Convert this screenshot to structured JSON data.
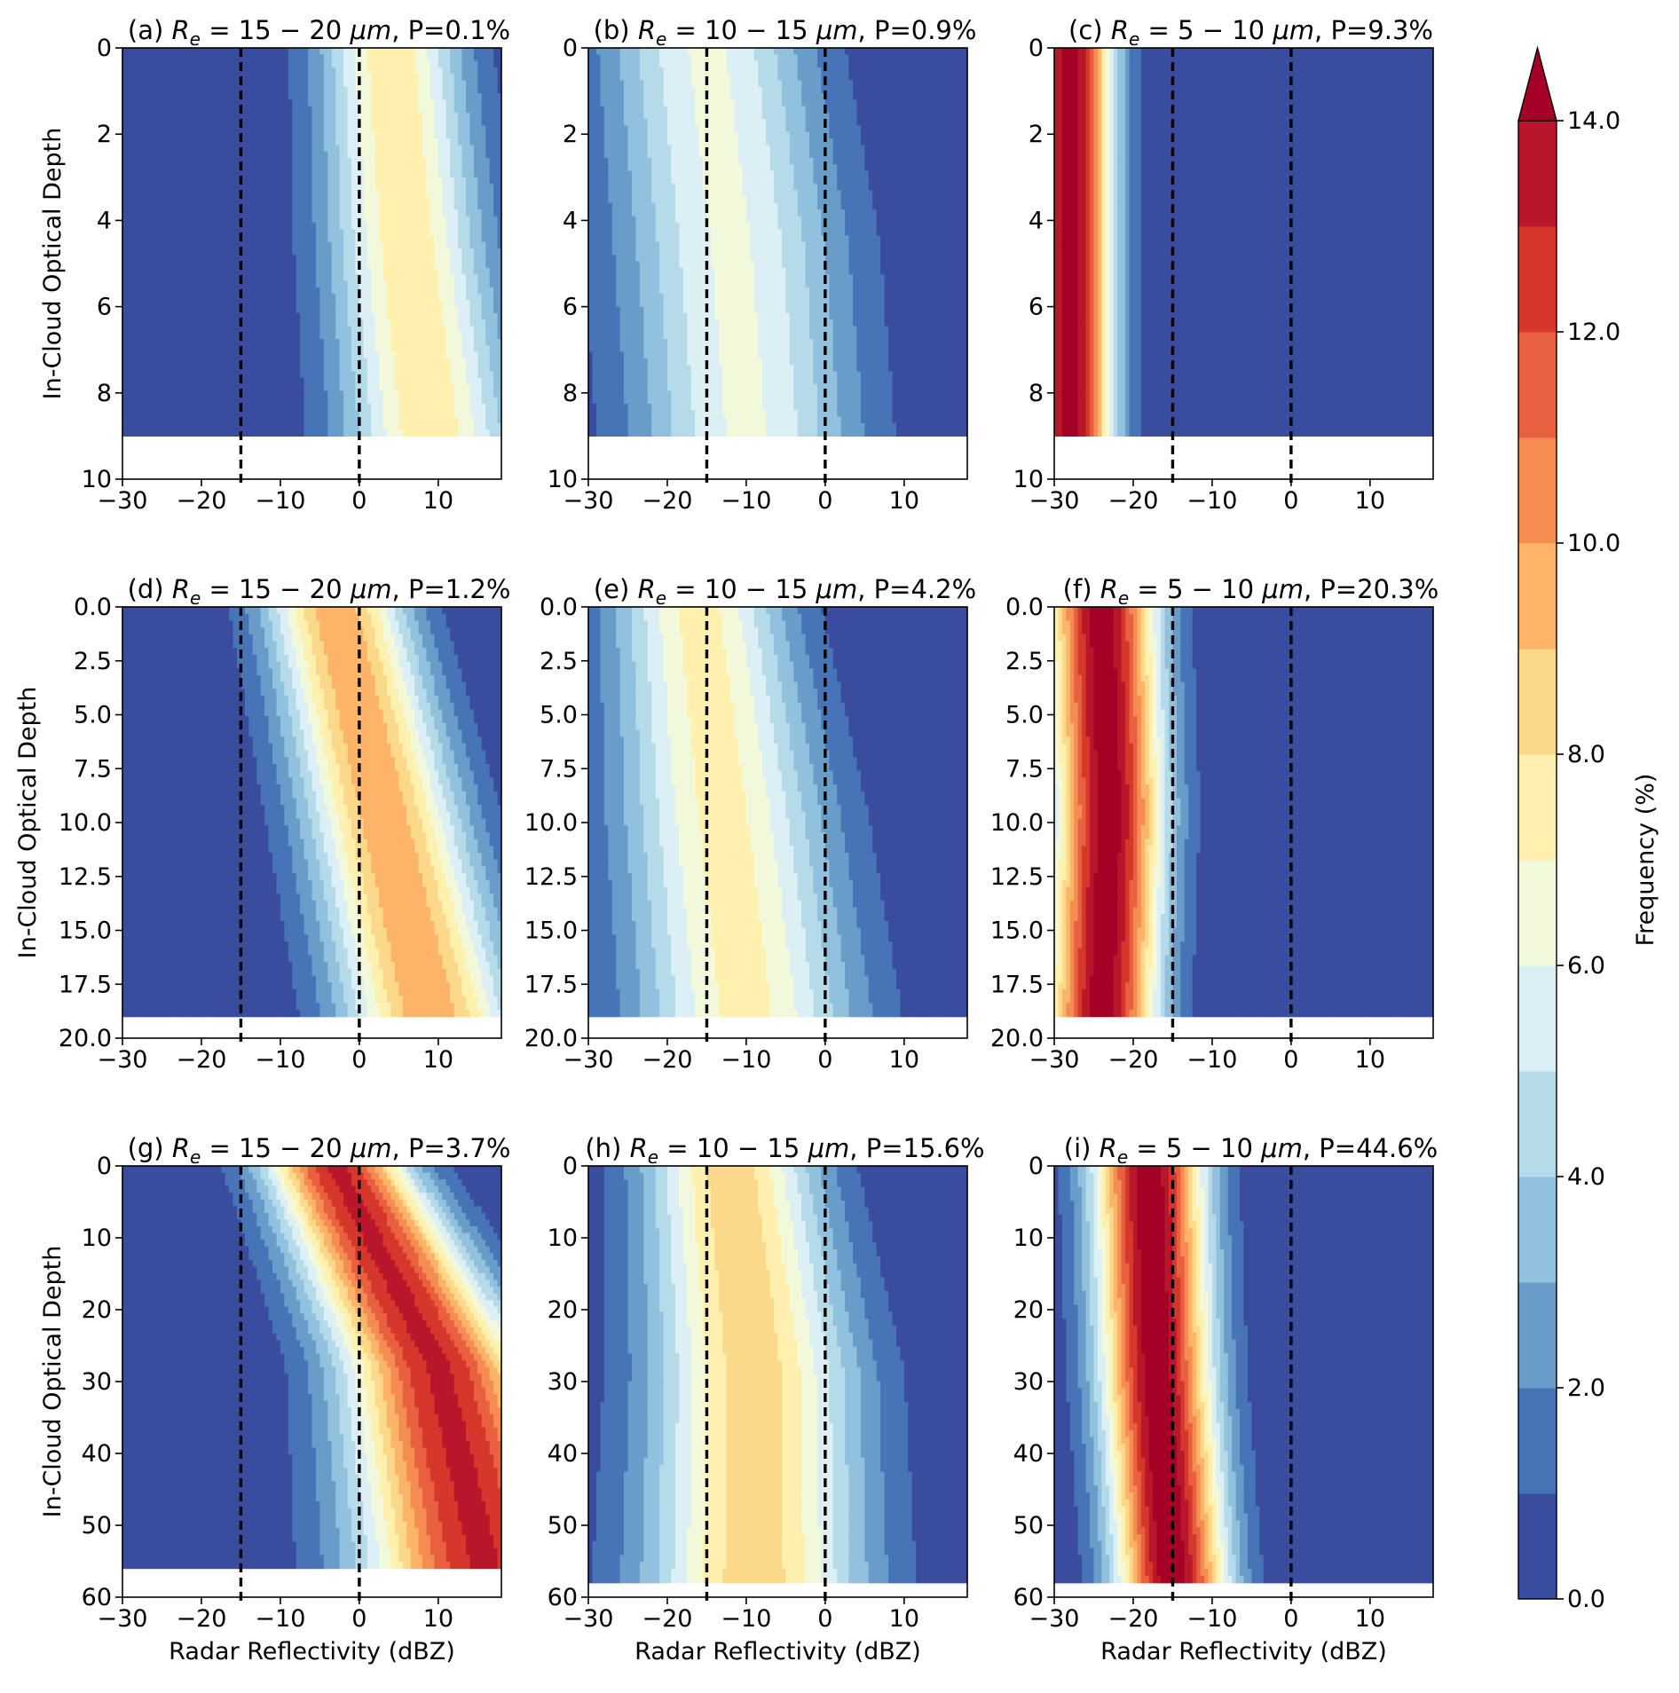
{
  "figure": {
    "colorbar": {
      "label": "Frequency (%)",
      "tick_labels": [
        "0.0",
        "2.0",
        "4.0",
        "6.0",
        "8.0",
        "10.0",
        "12.0",
        "14.0"
      ],
      "levels": [
        0,
        1,
        2,
        3,
        4,
        5,
        6,
        7,
        8,
        9,
        10,
        11,
        12,
        13,
        14
      ],
      "colors": [
        "#3a4c9e",
        "#4674b6",
        "#6a9cc9",
        "#92c1dd",
        "#b5dbe9",
        "#dceff5",
        "#f2f9da",
        "#fef1b0",
        "#fcd98a",
        "#fbb468",
        "#f58d53",
        "#e8603f",
        "#d6372b",
        "#b8172b"
      ],
      "extend": "max",
      "extend_color": "#a50026"
    },
    "reference_lines_dbz": [
      -15,
      0
    ],
    "xlabel": "Radar Reflectivity (dBZ)",
    "ylabel": "In-Cloud Optical Depth"
  },
  "chart_data": [
    {
      "id": "a",
      "type": "heatmap",
      "title_prefix": "(a) ",
      "title_math": "R",
      "title_sub": "e",
      "title_range": " = 15 − 20 ",
      "title_unit": "μm",
      "title_suffix": ", P=0.1%",
      "xlabel": "",
      "ylabel": "In-Cloud Optical Depth",
      "xlim": [
        -30,
        18
      ],
      "ylim": [
        10,
        0
      ],
      "data_max_y": 9,
      "xticks": [
        "−30",
        "−20",
        "−10",
        "0",
        "10"
      ],
      "xtick_values": [
        -30,
        -20,
        -10,
        0,
        10
      ],
      "yticks": [
        "0",
        "2",
        "4",
        "6",
        "8",
        "10"
      ],
      "ytick_values": [
        0,
        2,
        4,
        6,
        8,
        10
      ],
      "peak_x": [
        4,
        6,
        9
      ],
      "peak": 7.8,
      "spread": [
        9,
        10,
        11
      ]
    },
    {
      "id": "b",
      "type": "heatmap",
      "title_prefix": "(b) ",
      "title_math": "R",
      "title_sub": "e",
      "title_range": " = 10 − 15 ",
      "title_unit": "μm",
      "title_suffix": ", P=0.9%",
      "xlabel": "",
      "ylabel": "",
      "xlim": [
        -30,
        18
      ],
      "ylim": [
        10,
        0
      ],
      "data_max_y": 9,
      "xticks": [
        "−30",
        "−20",
        "−10",
        "0",
        "10"
      ],
      "xtick_values": [
        -30,
        -20,
        -10,
        0,
        10
      ],
      "yticks": [
        "0",
        "2",
        "4",
        "6",
        "8",
        "10"
      ],
      "ytick_values": [
        0,
        2,
        4,
        6,
        8,
        10
      ],
      "peak_x": [
        -15,
        -12,
        -10
      ],
      "peak": 6.2,
      "spread": [
        13,
        14,
        14
      ]
    },
    {
      "id": "c",
      "type": "heatmap",
      "title_prefix": "(c) ",
      "title_math": "R",
      "title_sub": "e",
      "title_range": " = 5 − 10 ",
      "title_unit": "μm",
      "title_suffix": ", P=9.3%",
      "xlabel": "",
      "ylabel": "",
      "xlim": [
        -30,
        18
      ],
      "ylim": [
        10,
        0
      ],
      "data_max_y": 9,
      "xticks": [
        "−30",
        "−20",
        "−10",
        "0",
        "10"
      ],
      "xtick_values": [
        -30,
        -20,
        -10,
        0,
        10
      ],
      "yticks": [
        "0",
        "2",
        "4",
        "6",
        "8",
        "10"
      ],
      "ytick_values": [
        0,
        2,
        4,
        6,
        8,
        10
      ],
      "peak_x": [
        -28,
        -28,
        -28
      ],
      "peak": 14.5,
      "spread": [
        5.5,
        5.5,
        5.5
      ]
    },
    {
      "id": "d",
      "type": "heatmap",
      "title_prefix": "(d) ",
      "title_math": "R",
      "title_sub": "e",
      "title_range": " = 15 − 20 ",
      "title_unit": "μm",
      "title_suffix": ", P=1.2%",
      "xlabel": "",
      "ylabel": "In-Cloud Optical Depth",
      "xlim": [
        -30,
        18
      ],
      "ylim": [
        20,
        0
      ],
      "data_max_y": 19,
      "xticks": [
        "−30",
        "−20",
        "−10",
        "0",
        "10"
      ],
      "xtick_values": [
        -30,
        -20,
        -10,
        0,
        10
      ],
      "yticks": [
        "0.0",
        "2.5",
        "5.0",
        "7.5",
        "10.0",
        "12.5",
        "15.0",
        "17.5",
        "20.0"
      ],
      "ytick_values": [
        0,
        2.5,
        5,
        7.5,
        10,
        12.5,
        15,
        17.5,
        20
      ],
      "peak_x": [
        -3,
        3,
        9
      ],
      "peak": 9.8,
      "spread": [
        9,
        10,
        11
      ]
    },
    {
      "id": "e",
      "type": "heatmap",
      "title_prefix": "(e) ",
      "title_math": "R",
      "title_sub": "e",
      "title_range": " = 10 − 15 ",
      "title_unit": "μm",
      "title_suffix": ", P=4.2%",
      "xlabel": "",
      "ylabel": "",
      "xlim": [
        -30,
        18
      ],
      "ylim": [
        20,
        0
      ],
      "data_max_y": 19,
      "xticks": [
        "−30",
        "−20",
        "−10",
        "0",
        "10"
      ],
      "xtick_values": [
        -30,
        -20,
        -10,
        0,
        10
      ],
      "yticks": [
        "0.0",
        "2.5",
        "5.0",
        "7.5",
        "10.0",
        "12.5",
        "15.0",
        "17.5",
        "20.0"
      ],
      "ytick_values": [
        0,
        2.5,
        5,
        7.5,
        10,
        12.5,
        15,
        17.5,
        20
      ],
      "peak_x": [
        -16,
        -13,
        -10
      ],
      "peak": 7.4,
      "spread": [
        11,
        13,
        14
      ]
    },
    {
      "id": "f",
      "type": "heatmap",
      "title_prefix": "(f) ",
      "title_math": "R",
      "title_sub": "e",
      "title_range": " = 5 − 10 ",
      "title_unit": "μm",
      "title_suffix": ", P=20.3%",
      "xlabel": "",
      "ylabel": "",
      "xlim": [
        -30,
        18
      ],
      "ylim": [
        20,
        0
      ],
      "data_max_y": 19,
      "xticks": [
        "−30",
        "−20",
        "−10",
        "0",
        "10"
      ],
      "xtick_values": [
        -30,
        -20,
        -10,
        0,
        10
      ],
      "yticks": [
        "0.0",
        "2.5",
        "5.0",
        "7.5",
        "10.0",
        "12.5",
        "15.0",
        "17.5",
        "20.0"
      ],
      "ytick_values": [
        0,
        2.5,
        5,
        7.5,
        10,
        12.5,
        15,
        17.5,
        20
      ],
      "peak_x": [
        -24,
        -23,
        -24
      ],
      "peak": 14.6,
      "spread": [
        7,
        7,
        7
      ]
    },
    {
      "id": "g",
      "type": "heatmap",
      "title_prefix": "(g) ",
      "title_math": "R",
      "title_sub": "e",
      "title_range": " = 15 − 20 ",
      "title_unit": "μm",
      "title_suffix": ", P=3.7%",
      "xlabel": "Radar Reflectivity (dBZ)",
      "ylabel": "In-Cloud Optical Depth",
      "xlim": [
        -30,
        18
      ],
      "ylim": [
        60,
        0
      ],
      "data_max_y": 56,
      "xticks": [
        "−30",
        "−20",
        "−10",
        "0",
        "10"
      ],
      "xtick_values": [
        -30,
        -20,
        -10,
        0,
        10
      ],
      "yticks": [
        "0",
        "10",
        "20",
        "30",
        "40",
        "50",
        "60"
      ],
      "ytick_values": [
        0,
        10,
        20,
        30,
        40,
        50,
        60
      ],
      "peak_x": [
        -3,
        10,
        16
      ],
      "peak": 13.2,
      "spread": [
        9,
        12,
        15
      ]
    },
    {
      "id": "h",
      "type": "heatmap",
      "title_prefix": "(h) ",
      "title_math": "R",
      "title_sub": "e",
      "title_range": " = 10 − 15 ",
      "title_unit": "μm",
      "title_suffix": ", P=15.6%",
      "xlabel": "Radar Reflectivity (dBZ)",
      "ylabel": "",
      "xlim": [
        -30,
        18
      ],
      "ylim": [
        60,
        0
      ],
      "data_max_y": 58,
      "xticks": [
        "−30",
        "−20",
        "−10",
        "0",
        "10"
      ],
      "xtick_values": [
        -30,
        -20,
        -10,
        0,
        10
      ],
      "yticks": [
        "0",
        "10",
        "20",
        "30",
        "40",
        "50",
        "60"
      ],
      "ytick_values": [
        0,
        10,
        20,
        30,
        40,
        50,
        60
      ],
      "peak_x": [
        -12,
        -9,
        -9
      ],
      "peak": 8.6,
      "spread": [
        11,
        13,
        14
      ]
    },
    {
      "id": "i",
      "type": "heatmap",
      "title_prefix": "(i) ",
      "title_math": "R",
      "title_sub": "e",
      "title_range": " = 5 − 10 ",
      "title_unit": "μm",
      "title_suffix": ", P=44.6%",
      "xlabel": "Radar Reflectivity (dBZ)",
      "ylabel": "",
      "xlim": [
        -30,
        18
      ],
      "ylim": [
        60,
        0
      ],
      "data_max_y": 58,
      "xticks": [
        "−30",
        "−20",
        "−10",
        "0",
        "10"
      ],
      "xtick_values": [
        -30,
        -20,
        -10,
        0,
        10
      ],
      "yticks": [
        "0",
        "10",
        "20",
        "30",
        "40",
        "50",
        "60"
      ],
      "ytick_values": [
        0,
        10,
        20,
        30,
        40,
        50,
        60
      ],
      "peak_x": [
        -18,
        -17,
        -15
      ],
      "peak": 14.8,
      "spread": [
        7,
        7,
        7
      ]
    }
  ]
}
